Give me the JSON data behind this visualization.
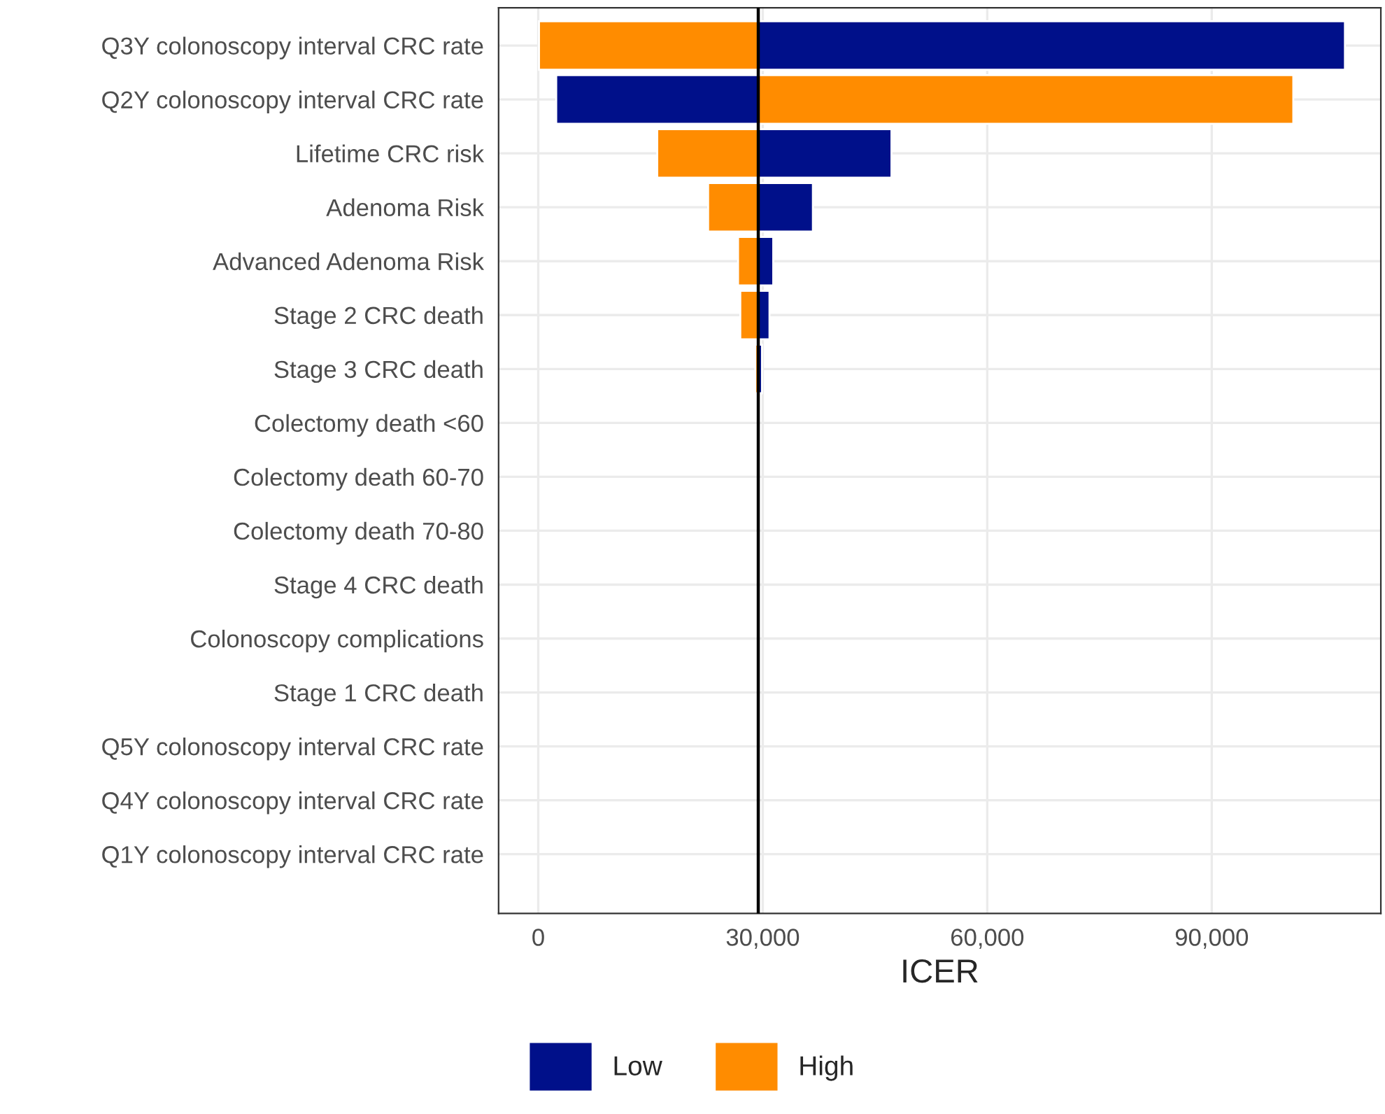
{
  "chart_data": {
    "type": "bar",
    "orientation": "horizontal",
    "xlabel": "ICER",
    "categories": [
      "Q3Y colonoscopy interval CRC rate",
      "Q2Y colonoscopy interval CRC rate",
      "Lifetime CRC risk",
      "Adenoma Risk",
      "Advanced Adenoma Risk",
      "Stage 2 CRC death",
      "Stage 3 CRC death",
      "Colectomy death <60",
      "Colectomy death 60-70",
      "Colectomy death 70-80",
      "Stage 4 CRC death",
      "Colonoscopy complications",
      "Stage 1 CRC death",
      "Q5Y colonoscopy interval CRC rate",
      "Q4Y colonoscopy interval CRC rate",
      "Q1Y colonoscopy interval CRC rate"
    ],
    "series": [
      {
        "name": "Low",
        "color": "#00108a",
        "base": [
          29400,
          2400,
          29400,
          29400,
          29400,
          29400,
          29400,
          null,
          null,
          null,
          null,
          null,
          null,
          null,
          null,
          null
        ],
        "values": [
          78400,
          27000,
          17800,
          7300,
          2000,
          1500,
          500,
          null,
          null,
          null,
          null,
          null,
          null,
          null,
          null,
          null
        ]
      },
      {
        "name": "High",
        "color": "#ff8c00",
        "base": [
          100,
          29400,
          15900,
          22700,
          26700,
          27000,
          29000,
          null,
          null,
          null,
          null,
          null,
          null,
          null,
          null,
          null
        ],
        "values": [
          29300,
          71500,
          13500,
          6700,
          2700,
          2400,
          400,
          null,
          null,
          null,
          null,
          null,
          null,
          null,
          null,
          null
        ]
      }
    ],
    "xlim": [
      -5300,
      112600
    ],
    "xticks": [
      {
        "value": 0,
        "label": "0"
      },
      {
        "value": 30000,
        "label": "30,000"
      },
      {
        "value": 60000,
        "label": "60,000"
      },
      {
        "value": 90000,
        "label": "90,000"
      }
    ],
    "ref_lines": [
      {
        "axis": "x",
        "value": 29400,
        "color": "#000000"
      }
    ],
    "grid": true,
    "legend": "bottom"
  }
}
